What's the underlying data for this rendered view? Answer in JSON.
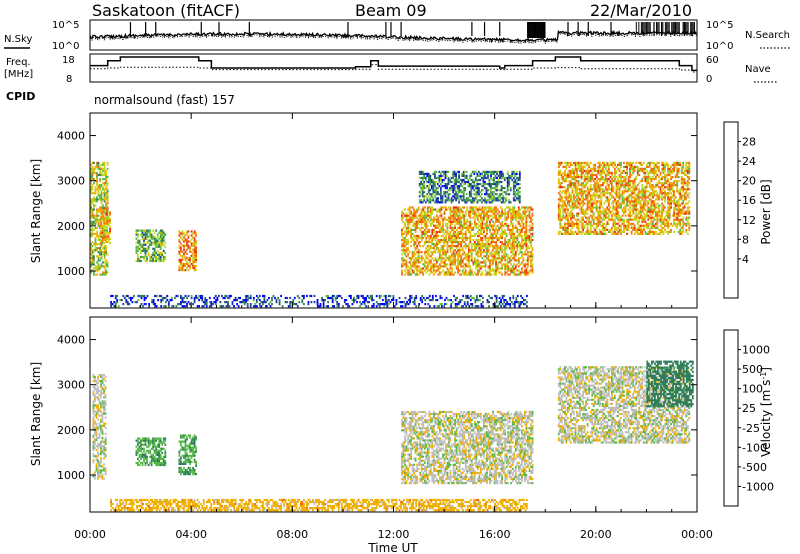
{
  "header": {
    "station": "Saskatoon (fitACF)",
    "beam": "Beam 09",
    "date": "22/Mar/2010"
  },
  "noise_panel": {
    "left_label": "N.Sky",
    "right_label": "N.Search",
    "left_ticks": [
      "10^5",
      "10^0"
    ],
    "right_ticks": [
      "10^5",
      "10^0"
    ]
  },
  "freq_panel": {
    "left_label_1": "Freq.",
    "left_label_2": "[MHz]",
    "left_ticks": [
      "18",
      "8"
    ],
    "right_ticks": [
      "60",
      "0"
    ],
    "right_label": "Nave",
    "cpid_label": "CPID",
    "cpid_value": "normalsound (fast) 157",
    "freq_steps": [
      [
        0,
        14
      ],
      [
        0.7,
        16
      ],
      [
        1.2,
        17.6
      ],
      [
        4.3,
        16
      ],
      [
        4.8,
        13
      ],
      [
        10.5,
        13.5
      ],
      [
        11.1,
        16
      ],
      [
        11.4,
        13.8
      ],
      [
        16.2,
        13
      ],
      [
        16.4,
        14
      ],
      [
        17.5,
        16
      ],
      [
        18.4,
        17.6
      ],
      [
        19.4,
        16
      ],
      [
        23.3,
        14
      ],
      [
        23.8,
        12
      ]
    ],
    "nave_steps": [
      [
        0,
        28
      ],
      [
        0.7,
        30
      ],
      [
        1.2,
        32
      ],
      [
        4.3,
        30
      ],
      [
        4.8,
        26
      ],
      [
        10.5,
        27
      ],
      [
        11.1,
        38
      ],
      [
        11.4,
        27
      ],
      [
        16.2,
        26
      ],
      [
        16.4,
        27
      ],
      [
        17.5,
        30
      ],
      [
        18.4,
        31
      ],
      [
        19.4,
        28
      ],
      [
        23.3,
        25
      ],
      [
        23.8,
        20
      ]
    ]
  },
  "axes": {
    "ylabel": "Slant Range [km]",
    "xlabel": "Time UT",
    "yticks": [
      "1000",
      "2000",
      "3000",
      "4000"
    ],
    "xticks": [
      "00:00",
      "04:00",
      "08:00",
      "12:00",
      "16:00",
      "20:00",
      "00:00"
    ]
  },
  "power_colorbar": {
    "title": "Power [dB]",
    "labels": [
      "28",
      "24",
      "20",
      "16",
      "12",
      "8",
      "4"
    ],
    "colors": [
      "#0000ff",
      "#1f3fa0",
      "#2e7d5a",
      "#58b848",
      "#c0d820",
      "#f0b000",
      "#f07010",
      "#e8300c",
      "#ff0000"
    ]
  },
  "velocity_colorbar": {
    "title": "Velocity [m s^-1]",
    "labels": [
      "1000",
      "500",
      "100",
      "25",
      "-25",
      "-100",
      "-500",
      "-1000"
    ],
    "colors": [
      "#1f3fb0",
      "#2060a0",
      "#2e7d5a",
      "#58b848",
      "#bebebe",
      "#f0b000",
      "#f07010",
      "#e8300c",
      "#ff0000"
    ]
  },
  "chart_data": [
    {
      "type": "heatmap",
      "title": "Power [dB]",
      "x_range_hours": [
        0,
        24
      ],
      "y_range_km": [
        180,
        4500
      ],
      "regions": [
        {
          "t0": 0.0,
          "t1": 0.7,
          "r0": 900,
          "r1": 3400,
          "power": 18
        },
        {
          "t0": 0.4,
          "t1": 0.8,
          "r0": 1600,
          "r1": 2400,
          "power": 22
        },
        {
          "t0": 1.8,
          "t1": 3.0,
          "r0": 1200,
          "r1": 1900,
          "power": 14
        },
        {
          "t0": 3.5,
          "t1": 4.2,
          "r0": 1000,
          "r1": 1900,
          "power": 24
        },
        {
          "t0": 12.3,
          "t1": 17.5,
          "r0": 900,
          "r1": 2400,
          "power": 22
        },
        {
          "t0": 13.0,
          "t1": 17.0,
          "r0": 2500,
          "r1": 3200,
          "power": 10
        },
        {
          "t0": 18.5,
          "t1": 23.7,
          "r0": 1800,
          "r1": 3400,
          "power": 22
        },
        {
          "t0": 0.8,
          "t1": 17.3,
          "r0": 200,
          "r1": 450,
          "power": 6
        }
      ]
    },
    {
      "type": "heatmap",
      "title": "Velocity [m s^-1]",
      "x_range_hours": [
        0,
        24
      ],
      "y_range_km": [
        180,
        4500
      ],
      "regions": [
        {
          "t0": 0.1,
          "t1": 0.6,
          "r0": 900,
          "r1": 3200,
          "velocity": 0
        },
        {
          "t0": 1.8,
          "t1": 3.0,
          "r0": 1200,
          "r1": 1800,
          "velocity": 80
        },
        {
          "t0": 3.5,
          "t1": 4.2,
          "r0": 1000,
          "r1": 1900,
          "velocity": 80
        },
        {
          "t0": 12.3,
          "t1": 17.5,
          "r0": 800,
          "r1": 2400,
          "velocity": 0
        },
        {
          "t0": 18.5,
          "t1": 23.7,
          "r0": 1700,
          "r1": 3400,
          "velocity": 0
        },
        {
          "t0": 22.0,
          "t1": 23.8,
          "r0": 2500,
          "r1": 3500,
          "velocity": 150
        },
        {
          "t0": 0.8,
          "t1": 17.3,
          "r0": 200,
          "r1": 450,
          "velocity": -60
        }
      ]
    }
  ]
}
